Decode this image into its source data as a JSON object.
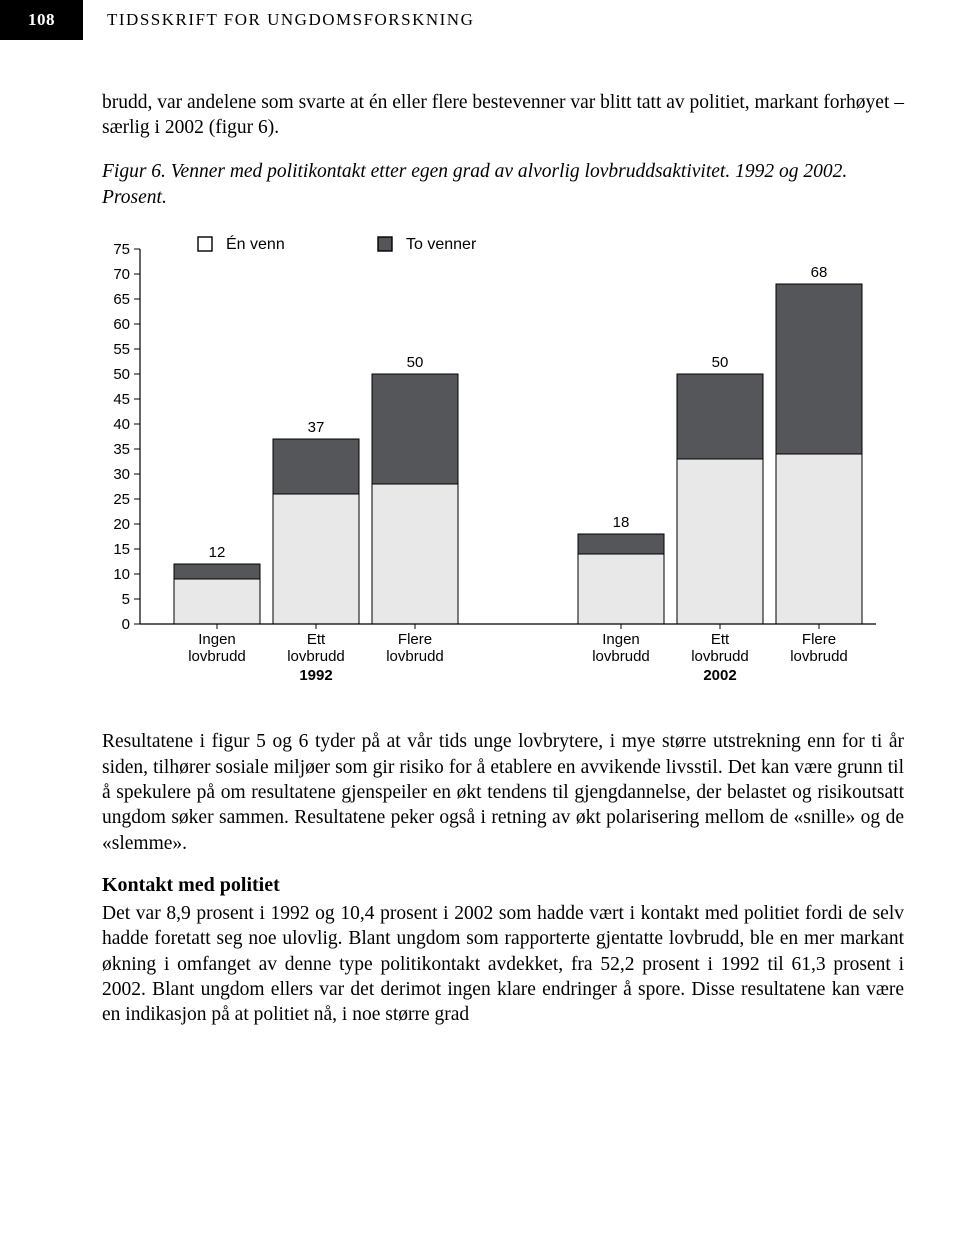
{
  "header": {
    "page_number": "108",
    "journal": "TIDSSKRIFT FOR UNGDOMSFORSKNING"
  },
  "intro_paragraph": "brudd, var andelene som svarte at én eller flere bestevenner var blitt tatt av politiet, markant forhøyet – særlig i 2002 (figur 6).",
  "figure_caption": "Figur 6. Venner med politikontakt etter egen grad av alvorlig lovbrudds­aktivitet. 1992 og 2002. Prosent.",
  "chart": {
    "type": "stacked-bar",
    "legend": [
      {
        "label": "Én venn",
        "fill": "#e8e8e9",
        "stroke": "#000"
      },
      {
        "label": "To venner",
        "fill": "#55565a",
        "stroke": "#000"
      }
    ],
    "y_axis": {
      "min": 0,
      "max": 75,
      "step": 5
    },
    "groups": [
      {
        "year": "1992",
        "bars": [
          {
            "label_top": "Ingen",
            "label_bot": "lovbrudd",
            "total": 12,
            "en_venn": 9,
            "to_venner": 3
          },
          {
            "label_top": "Ett",
            "label_bot": "lovbrudd",
            "total": 37,
            "en_venn": 26,
            "to_venner": 11
          },
          {
            "label_top": "Flere",
            "label_bot": "lovbrudd",
            "total": 50,
            "en_venn": 28,
            "to_venner": 22
          }
        ]
      },
      {
        "year": "2002",
        "bars": [
          {
            "label_top": "Ingen",
            "label_bot": "lovbrudd",
            "total": 18,
            "en_venn": 14,
            "to_venner": 4
          },
          {
            "label_top": "Ett",
            "label_bot": "lovbrudd",
            "total": 50,
            "en_venn": 33,
            "to_venner": 17
          },
          {
            "label_top": "Flere",
            "label_bot": "lovbrudd",
            "total": 68,
            "en_venn": 34,
            "to_venner": 34
          }
        ]
      }
    ],
    "colors": {
      "en_venn": "#e8e8e9",
      "to_venner": "#55565a",
      "axis": "#000",
      "text": "#000"
    }
  },
  "body_paragraph": "Resultatene i figur 5 og 6 tyder på at vår tids unge lovbrytere, i mye større utstrekning enn for ti år siden, tilhører sosiale miljøer som gir risiko for å etablere en avvikende livsstil. Det kan være grunn til å spekulere på om resultatene gjenspeiler en økt tendens til gjengdannelse, der belastet og risi­koutsatt ungdom søker sammen. Resultatene peker også i retning av økt polarisering mellom de «snille» og de «slemme».",
  "section_heading": "Kontakt med politiet",
  "section_paragraph": "Det var 8,9 prosent i 1992 og 10,4 prosent i 2002 som hadde vært i kontakt med politiet fordi de selv hadde foretatt seg noe ulovlig. Blant ungdom som rapporterte gjentatte lovbrudd, ble en mer markant økning i omfanget av denne type politikontakt avdekket, fra 52,2 prosent i 1992 til 61,3 prosent i 2002. Blant ungdom ellers var det derimot ingen klare endringer å spore. Disse resultatene kan være en indikasjon på at politiet nå, i noe større grad"
}
